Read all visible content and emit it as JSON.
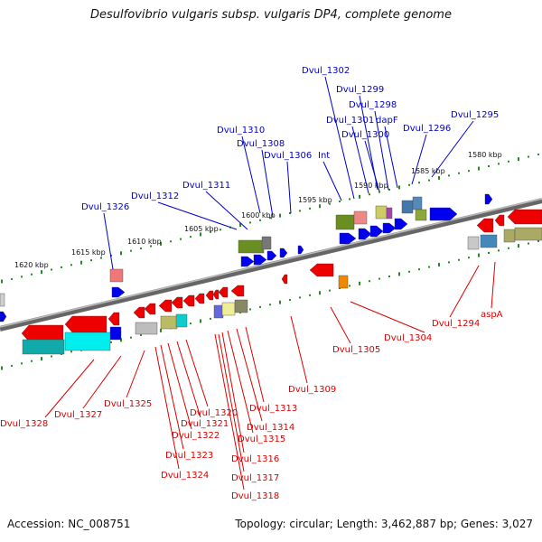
{
  "title": "Desulfovibrio vulgaris subsp. vulgaris DP4, complete genome",
  "footer": {
    "accession": "Accession: NC_008751",
    "summary": "Topology: circular; Length: 3,462,887 bp; Genes: 3,027"
  },
  "colors": {
    "forward": "#0000ee",
    "reverse": "#ee0000",
    "backbone": "#888888",
    "tick": "#228b22"
  },
  "kbp_labels": [
    "1620 kbp",
    "1615 kbp",
    "1610 kbp",
    "1605 kbp",
    "1600 kbp",
    "1595 kbp",
    "1590 kbp",
    "1585 kbp",
    "1580 kbp"
  ],
  "forward_genes": [
    "Dvul_1326",
    "Dvul_1312",
    "Dvul_1311",
    "Dvul_1310",
    "Dvul_1308",
    "Dvul_1306",
    "Int",
    "Dvul_1302",
    "Dvul_1301",
    "Dvul_1300",
    "Dvul_1299",
    "Dvul_1298",
    "dapF",
    "Dvul_1296",
    "Dvul_1295"
  ],
  "reverse_genes": [
    "Dvul_1328",
    "Dvul_1327",
    "Dvul_1325",
    "Dvul_1324",
    "Dvul_1323",
    "Dvul_1322",
    "Dvul_1321",
    "Dvul_1320",
    "Dvul_1318",
    "Dvul_1317",
    "Dvul_1316",
    "Dvul_1315",
    "Dvul_1314",
    "Dvul_1313",
    "Dvul_1309",
    "Dvul_1305",
    "Dvul_1304",
    "Dvul_1294",
    "aspA"
  ]
}
